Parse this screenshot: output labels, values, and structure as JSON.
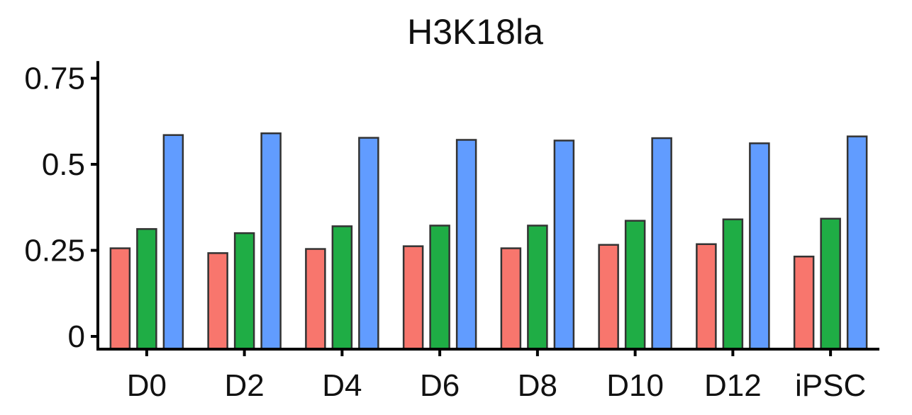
{
  "chart_data": {
    "type": "bar",
    "title": "H3K18la",
    "xlabel": "",
    "ylabel": "",
    "categories": [
      "D0",
      "D2",
      "D4",
      "D6",
      "D8",
      "D10",
      "D12",
      "iPSC"
    ],
    "series": [
      {
        "color": "#F8766D",
        "values": [
          0.256,
          0.242,
          0.254,
          0.262,
          0.256,
          0.266,
          0.268,
          0.232
        ]
      },
      {
        "color": "#1FAD45",
        "values": [
          0.312,
          0.3,
          0.32,
          0.322,
          0.322,
          0.336,
          0.34,
          0.342
        ]
      },
      {
        "color": "#619CFF",
        "values": [
          0.585,
          0.59,
          0.577,
          0.571,
          0.569,
          0.576,
          0.561,
          0.581
        ]
      }
    ],
    "yticks": [
      0,
      0.25,
      0.5,
      0.75
    ],
    "ytick_labels": [
      "0",
      "0.25",
      "0.5",
      "0.75"
    ],
    "ylim": [
      -0.035,
      0.8
    ],
    "grid": false,
    "legend": "none"
  }
}
